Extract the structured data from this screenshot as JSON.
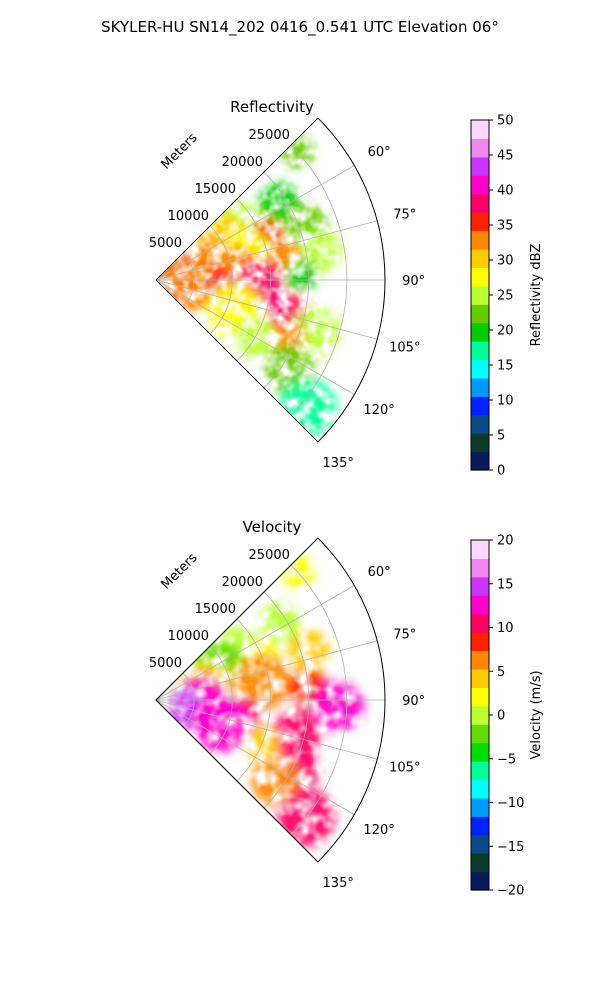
{
  "figure": {
    "suptitle": "SKYLER-HU  SN14_202  0416_0.541 UTC Elevation 06°"
  },
  "chart_data": [
    {
      "type": "heatmap",
      "projection": "polar-sector",
      "title": "Reflectivity",
      "radial_axis_label": "Meters",
      "radial_ticks": [
        5000,
        10000,
        15000,
        20000,
        25000
      ],
      "radial_tick_labels": [
        "5000",
        "10000",
        "15000",
        "20000",
        "25000"
      ],
      "rlim": [
        0,
        30000
      ],
      "azimuth_range_deg": [
        45,
        135
      ],
      "azimuth_ticks": [
        60,
        75,
        90,
        105,
        120,
        135
      ],
      "azimuth_tick_labels": [
        "60°",
        "75°",
        "90°",
        "105°",
        "120°",
        "135°"
      ],
      "grid": true,
      "colorbar": {
        "label": "Reflectivity dBZ",
        "min": 0,
        "max": 50,
        "ticks": [
          0,
          5,
          10,
          15,
          20,
          25,
          30,
          35,
          40,
          45,
          50
        ],
        "tick_labels": [
          "0",
          "5",
          "10",
          "15",
          "20",
          "25",
          "30",
          "35",
          "40",
          "45",
          "50"
        ],
        "stops": [
          "#0a1a5c",
          "#0b3b2a",
          "#0a4a8a",
          "#0022ff",
          "#0099ff",
          "#00ffff",
          "#00ff99",
          "#00cc00",
          "#66cc00",
          "#bbff33",
          "#ffff00",
          "#ffcc00",
          "#ff8800",
          "#ff2200",
          "#ff0066",
          "#ff00cc",
          "#cc33ff",
          "#ee88ee",
          "#ffd6ff"
        ]
      },
      "value_field": [
        {
          "az": 48,
          "r": 25000,
          "v": 22
        },
        {
          "az": 58,
          "r": 19000,
          "v": 21
        },
        {
          "az": 58,
          "r": 13000,
          "v": 26
        },
        {
          "az": 62,
          "r": 10000,
          "v": 30
        },
        {
          "az": 68,
          "r": 15500,
          "v": 36
        },
        {
          "az": 70,
          "r": 21000,
          "v": 22
        },
        {
          "az": 72,
          "r": 8000,
          "v": 34
        },
        {
          "az": 76,
          "r": 12000,
          "v": 28
        },
        {
          "az": 80,
          "r": 17000,
          "v": 33
        },
        {
          "az": 80,
          "r": 22000,
          "v": 25
        },
        {
          "az": 84,
          "r": 3500,
          "v": 37
        },
        {
          "az": 85,
          "r": 10000,
          "v": 33
        },
        {
          "az": 88,
          "r": 19000,
          "v": 21
        },
        {
          "az": 92,
          "r": 7000,
          "v": 36
        },
        {
          "az": 92,
          "r": 13500,
          "v": 38
        },
        {
          "az": 97,
          "r": 4000,
          "v": 33
        },
        {
          "az": 100,
          "r": 9000,
          "v": 38
        },
        {
          "az": 104,
          "r": 18000,
          "v": 38
        },
        {
          "az": 108,
          "r": 22000,
          "v": 24
        },
        {
          "az": 112,
          "r": 11000,
          "v": 27
        },
        {
          "az": 114,
          "r": 19000,
          "v": 34
        },
        {
          "az": 120,
          "r": 15000,
          "v": 26
        },
        {
          "az": 124,
          "r": 21000,
          "v": 22
        },
        {
          "az": 130,
          "r": 26000,
          "v": 18
        }
      ]
    },
    {
      "type": "heatmap",
      "projection": "polar-sector",
      "title": "Velocity",
      "radial_axis_label": "Meters",
      "radial_ticks": [
        5000,
        10000,
        15000,
        20000,
        25000
      ],
      "radial_tick_labels": [
        "5000",
        "10000",
        "15000",
        "20000",
        "25000"
      ],
      "rlim": [
        0,
        30000
      ],
      "azimuth_range_deg": [
        45,
        135
      ],
      "azimuth_ticks": [
        60,
        75,
        90,
        105,
        120,
        135
      ],
      "azimuth_tick_labels": [
        "60°",
        "75°",
        "90°",
        "105°",
        "120°",
        "135°"
      ],
      "grid": true,
      "colorbar": {
        "label": "Velocity (m/s)",
        "min": -20,
        "max": 20,
        "ticks": [
          -20,
          -15,
          -10,
          -5,
          0,
          5,
          10,
          15,
          20
        ],
        "tick_labels": [
          "−20",
          "−15",
          "−10",
          "−5",
          "0",
          "5",
          "10",
          "15",
          "20"
        ],
        "stops": [
          "#0a1a5c",
          "#0b3b2a",
          "#0a4a8a",
          "#0022ff",
          "#0099ff",
          "#00ffff",
          "#00ff99",
          "#00dd00",
          "#66dd00",
          "#bbff33",
          "#ffff00",
          "#ffcc00",
          "#ff8800",
          "#ff2200",
          "#ff0066",
          "#ff00cc",
          "#cc33ff",
          "#ee88ee",
          "#ffd6ff"
        ]
      },
      "value_field": [
        {
          "az": 48,
          "r": 25000,
          "v": 2
        },
        {
          "az": 58,
          "r": 19000,
          "v": 1
        },
        {
          "az": 58,
          "r": 12000,
          "v": -1
        },
        {
          "az": 64,
          "r": 9000,
          "v": -2
        },
        {
          "az": 68,
          "r": 15000,
          "v": 3
        },
        {
          "az": 72,
          "r": 21000,
          "v": 4
        },
        {
          "az": 76,
          "r": 7000,
          "v": 5
        },
        {
          "az": 80,
          "r": 14000,
          "v": 6
        },
        {
          "az": 84,
          "r": 3500,
          "v": 3
        },
        {
          "az": 86,
          "r": 20000,
          "v": 8
        },
        {
          "az": 92,
          "r": 24000,
          "v": 13
        },
        {
          "az": 96,
          "r": 6000,
          "v": 12
        },
        {
          "az": 100,
          "r": 12000,
          "v": 10
        },
        {
          "az": 104,
          "r": 4000,
          "v": 15
        },
        {
          "az": 104,
          "r": 19000,
          "v": 11
        },
        {
          "az": 110,
          "r": 9000,
          "v": 12
        },
        {
          "az": 112,
          "r": 15000,
          "v": 5
        },
        {
          "az": 116,
          "r": 21000,
          "v": 11
        },
        {
          "az": 124,
          "r": 19000,
          "v": 6
        },
        {
          "az": 128,
          "r": 25000,
          "v": 10
        }
      ]
    }
  ]
}
